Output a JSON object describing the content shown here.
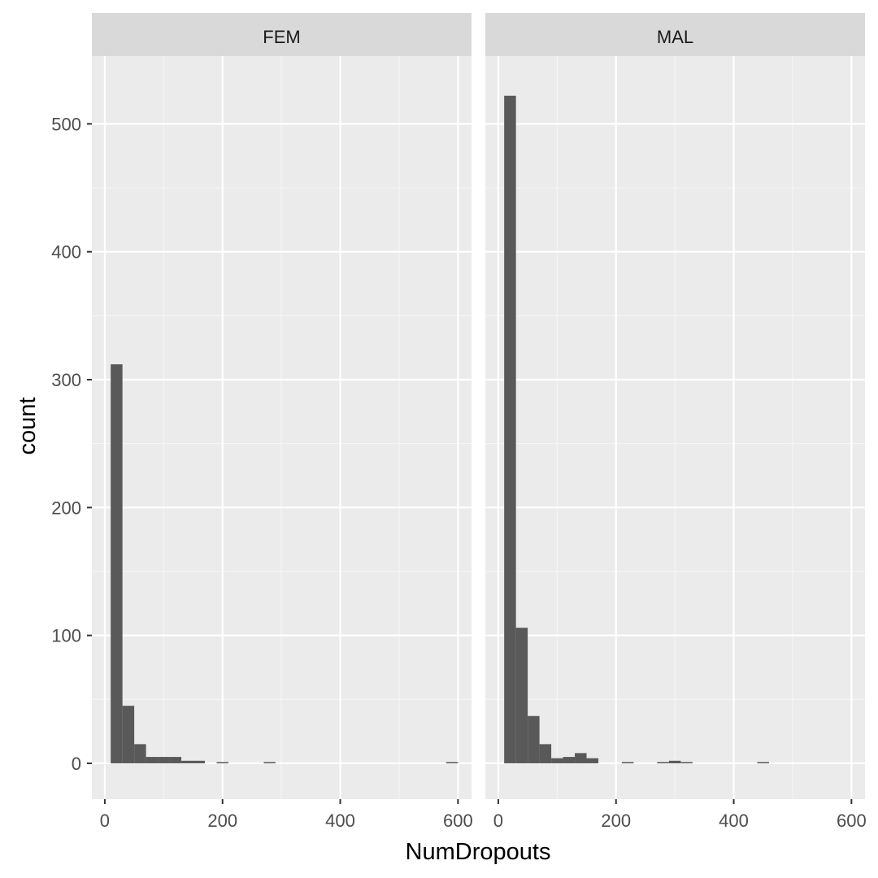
{
  "chart_data": {
    "type": "bar",
    "subtype": "faceted-histogram",
    "xlabel": "NumDropouts",
    "ylabel": "count",
    "xlim": [
      -22,
      623
    ],
    "ylim": [
      -28,
      553
    ],
    "x_ticks": [
      0,
      200,
      400,
      600
    ],
    "x_tick_labels": [
      "0",
      "200",
      "400",
      "600"
    ],
    "y_ticks": [
      0,
      100,
      200,
      300,
      400,
      500
    ],
    "y_tick_labels": [
      "0",
      "100",
      "200",
      "300",
      "400",
      "500"
    ],
    "x_minor_ticks": [
      100,
      300,
      500
    ],
    "y_minor_ticks": [
      50,
      150,
      250,
      350,
      450
    ],
    "grid": true,
    "bar_color": "#595959",
    "panel_background": "#ebebeb",
    "strip_background": "#d9d9d9",
    "bin_width": 20,
    "facets": [
      {
        "label": "FEM",
        "bins": [
          {
            "x0": 10,
            "x1": 30,
            "count": 312
          },
          {
            "x0": 30,
            "x1": 50,
            "count": 45
          },
          {
            "x0": 50,
            "x1": 70,
            "count": 15
          },
          {
            "x0": 70,
            "x1": 90,
            "count": 5
          },
          {
            "x0": 90,
            "x1": 110,
            "count": 5
          },
          {
            "x0": 110,
            "x1": 130,
            "count": 5
          },
          {
            "x0": 130,
            "x1": 150,
            "count": 2
          },
          {
            "x0": 150,
            "x1": 170,
            "count": 2
          },
          {
            "x0": 190,
            "x1": 210,
            "count": 1
          },
          {
            "x0": 270,
            "x1": 290,
            "count": 1
          },
          {
            "x0": 580,
            "x1": 600,
            "count": 1
          }
        ]
      },
      {
        "label": "MAL",
        "bins": [
          {
            "x0": 10,
            "x1": 30,
            "count": 522
          },
          {
            "x0": 30,
            "x1": 50,
            "count": 106
          },
          {
            "x0": 50,
            "x1": 70,
            "count": 37
          },
          {
            "x0": 70,
            "x1": 90,
            "count": 15
          },
          {
            "x0": 90,
            "x1": 110,
            "count": 4
          },
          {
            "x0": 110,
            "x1": 130,
            "count": 5
          },
          {
            "x0": 130,
            "x1": 150,
            "count": 8
          },
          {
            "x0": 150,
            "x1": 170,
            "count": 4
          },
          {
            "x0": 210,
            "x1": 230,
            "count": 1
          },
          {
            "x0": 270,
            "x1": 290,
            "count": 1
          },
          {
            "x0": 290,
            "x1": 310,
            "count": 2
          },
          {
            "x0": 310,
            "x1": 330,
            "count": 1
          },
          {
            "x0": 440,
            "x1": 460,
            "count": 1
          }
        ]
      }
    ]
  }
}
